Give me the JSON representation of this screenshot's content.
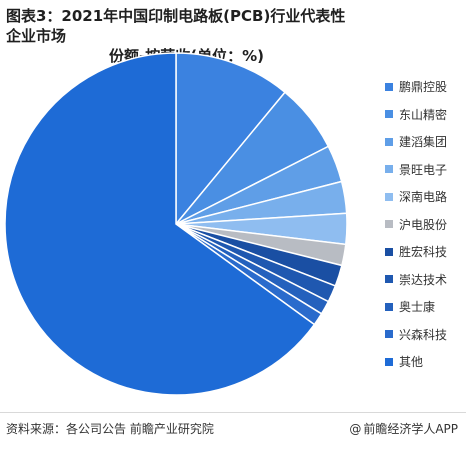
{
  "title_line1": "图表3：2021年中国印制电路板(PCB)行业代表性企业市场",
  "title_line2": "份额-按营收(单位：%)",
  "source": "资料来源：各公司公告 前瞻产业研究院",
  "brand": "前瞻经济学人APP",
  "brand_icon": "at-icon",
  "chart_data": {
    "type": "pie",
    "title": "2021年中国印制电路板(PCB)行业代表性企业市场份额-按营收(单位：%)",
    "legend_position": "right",
    "series": [
      {
        "name": "鹏鼎控股",
        "value": 11.0,
        "color": "#3b82e0"
      },
      {
        "name": "东山精密",
        "value": 6.5,
        "color": "#4a8fe3"
      },
      {
        "name": "建滔集团",
        "value": 3.5,
        "color": "#5f9ee7"
      },
      {
        "name": "景旺电子",
        "value": 3.0,
        "color": "#78afec"
      },
      {
        "name": "深南电路",
        "value": 2.9,
        "color": "#8fbdf0"
      },
      {
        "name": "沪电股份",
        "value": 2.0,
        "color": "#b8bcc3"
      },
      {
        "name": "胜宏科技",
        "value": 2.0,
        "color": "#1a4fa3"
      },
      {
        "name": "崇达技术",
        "value": 1.6,
        "color": "#1f58b0"
      },
      {
        "name": "奥士康",
        "value": 1.3,
        "color": "#2461bd"
      },
      {
        "name": "兴森科技",
        "value": 1.2,
        "color": "#2a6bcc"
      },
      {
        "name": "其他",
        "value": 65.0,
        "color": "#1e6bd6"
      }
    ]
  }
}
